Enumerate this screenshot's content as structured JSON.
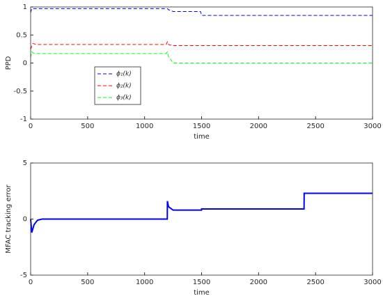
{
  "chart_data": [
    {
      "type": "line",
      "ylabel": "PPD",
      "xlabel": "time",
      "x": [
        0,
        10,
        20,
        50,
        1190,
        1200,
        1210,
        1250,
        1490,
        1500,
        3000
      ],
      "series": [
        {
          "name": "ϕ₁(k)",
          "color": "#0000ff",
          "values": [
            0.9,
            0.97,
            0.97,
            0.97,
            0.97,
            0.97,
            0.95,
            0.92,
            0.92,
            0.85,
            0.85
          ]
        },
        {
          "name": "ϕ₂(k)",
          "color": "#ff0000",
          "values": [
            0.25,
            0.3,
            0.35,
            0.33,
            0.33,
            0.38,
            0.33,
            0.31,
            0.31,
            0.31,
            0.31
          ]
        },
        {
          "name": "ϕ₃(k)",
          "color": "#00ff00",
          "values": [
            0.1,
            0.2,
            0.18,
            0.17,
            0.17,
            0.2,
            0.12,
            0,
            0,
            0,
            0
          ]
        }
      ],
      "line_style": "dashed",
      "legend": "lower-left",
      "xlim": [
        0,
        3000
      ],
      "xticks": [
        0,
        500,
        1000,
        1500,
        2000,
        2500,
        3000
      ],
      "ylim": [
        -1,
        1
      ],
      "yticks": [
        -1,
        -0.5,
        0,
        0.5,
        1
      ],
      "grid": false
    },
    {
      "type": "line",
      "ylabel": "MFAC tracking error",
      "xlabel": "time",
      "x": [
        0,
        10,
        30,
        60,
        100,
        1199,
        1200,
        1210,
        1250,
        1499,
        1500,
        2399,
        2400,
        3000
      ],
      "values": [
        0,
        -1.2,
        -0.5,
        -0.1,
        0,
        0,
        1.6,
        1.1,
        0.8,
        0.8,
        0.9,
        0.9,
        2.3,
        2.3
      ],
      "color": "#0000ff",
      "line_style": "solid",
      "xlim": [
        0,
        3000
      ],
      "xticks": [
        0,
        500,
        1000,
        1500,
        2000,
        2500,
        3000
      ],
      "ylim": [
        -5,
        5
      ],
      "yticks": [
        -5,
        0,
        5
      ],
      "grid": false
    }
  ]
}
